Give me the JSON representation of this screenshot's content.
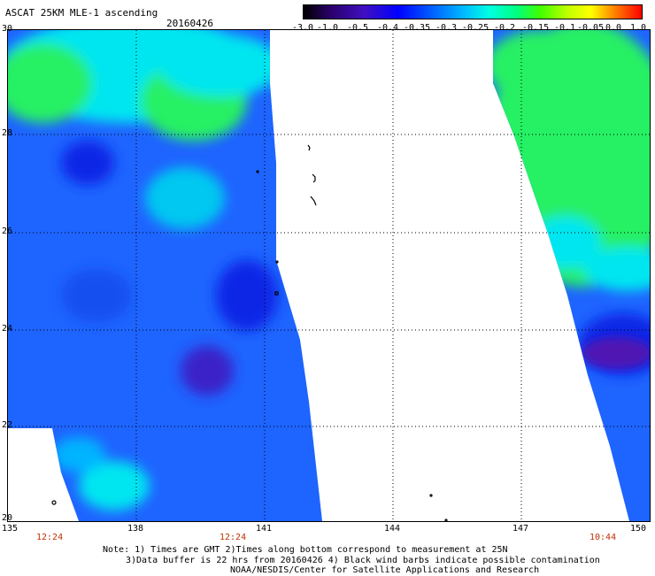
{
  "header": {
    "title": "ASCAT 25KM MLE-1 ascending",
    "date": "20160426"
  },
  "colorbar": {
    "ticks": [
      "-3.0",
      "-1.0",
      "-0.5",
      "-0.4",
      "-0.35",
      "-0.3",
      "-0.25",
      "-0.2",
      "-0.15",
      "-0.1",
      "-0.05",
      "0.0",
      "1.0"
    ]
  },
  "map": {
    "lat_labels": [
      "30",
      "28",
      "26",
      "24",
      "22",
      "20"
    ],
    "lon_labels": [
      "135",
      "138",
      "141",
      "144",
      "147",
      "150"
    ],
    "time_labels": [
      "12:24",
      "12:24",
      "10:44"
    ]
  },
  "footer": {
    "note_line1": "Note: 1) Times are GMT 2)Times along bottom correspond to measurement at 25N",
    "note_line2": "3)Data buffer is 22 hrs from 20160426 4) Black wind barbs indicate possible contamination",
    "credit": "NOAA/NESDIS/Center for Satellite Applications and Research"
  },
  "colors": {
    "swath_blue": "#1e64ff",
    "swath_deep_blue": "#0a28e6",
    "swath_cyan": "#00e6f0",
    "swath_green": "#28f064",
    "swath_purple": "#5014b4",
    "time_label_color": "#c03000"
  }
}
